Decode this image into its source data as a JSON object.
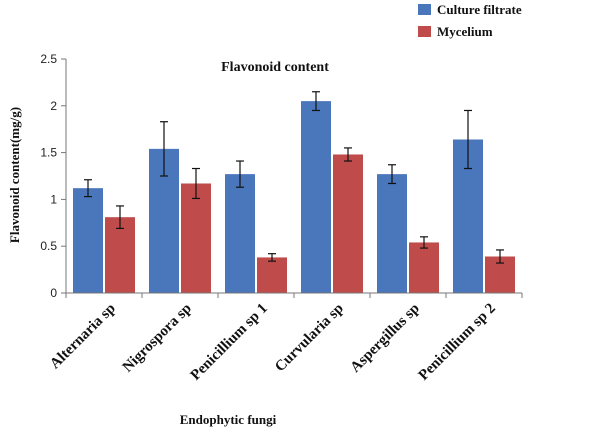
{
  "chart_data": {
    "type": "bar",
    "title": "Flavonoid content",
    "xlabel": "Endophytic fungi",
    "ylabel": "Flavonoid content(mg/g)",
    "ylim": [
      0,
      2.5
    ],
    "yticks": [
      "0",
      "0.5",
      "1",
      "1.5",
      "2",
      "2.5"
    ],
    "categories": [
      "Alternaria sp",
      "Nigrospora sp",
      "Penicillium sp  1",
      "Curvularia sp",
      "Aspergillus sp",
      "Penicillium sp  2"
    ],
    "series": [
      {
        "name": "Culture filtrate",
        "color": "#4a76bb",
        "values": [
          1.12,
          1.54,
          1.27,
          2.05,
          1.27,
          1.64
        ],
        "errors": [
          0.09,
          0.29,
          0.14,
          0.1,
          0.1,
          0.31
        ]
      },
      {
        "name": "Mycelium",
        "color": "#bf4b4b",
        "values": [
          0.81,
          1.17,
          0.38,
          1.48,
          0.54,
          0.39
        ],
        "errors": [
          0.12,
          0.16,
          0.04,
          0.07,
          0.06,
          0.07
        ]
      }
    ],
    "grid": false,
    "legend_position": "top-right"
  }
}
